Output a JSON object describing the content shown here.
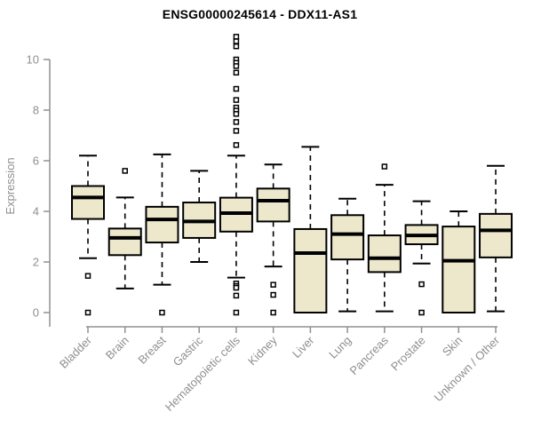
{
  "chart_data": {
    "type": "boxplot",
    "title": "ENSG00000245614 - DDX11-AS1",
    "ylabel": "Expression",
    "xlabel": "",
    "ylim": [
      0,
      11
    ],
    "yticks": [
      0,
      2,
      4,
      6,
      8,
      10
    ],
    "grid": false,
    "legend": false,
    "categories": [
      "Bladder",
      "Brain",
      "Breast",
      "Gastric",
      "Hematopoietic cells",
      "Kidney",
      "Liver",
      "Lung",
      "Pancreas",
      "Prostate",
      "Skin",
      "Unknown / Other"
    ],
    "boxes": [
      {
        "category": "Bladder",
        "min": 2.15,
        "q1": 3.7,
        "median": 4.55,
        "q3": 5.0,
        "max": 6.2,
        "outliers": [
          1.45,
          0
        ]
      },
      {
        "category": "Brain",
        "min": 0.95,
        "q1": 2.27,
        "median": 2.95,
        "q3": 3.32,
        "max": 4.55,
        "outliers": [
          5.6
        ]
      },
      {
        "category": "Breast",
        "min": 1.1,
        "q1": 2.77,
        "median": 3.68,
        "q3": 4.18,
        "max": 6.25,
        "outliers": [
          0
        ]
      },
      {
        "category": "Gastric",
        "min": 2.0,
        "q1": 2.95,
        "median": 3.6,
        "q3": 4.35,
        "max": 5.6,
        "outliers": []
      },
      {
        "category": "Hematopoietic cells",
        "min": 1.38,
        "q1": 3.2,
        "median": 3.93,
        "q3": 4.54,
        "max": 6.2,
        "outliers": [
          10.9,
          10.72,
          10.52,
          10.0,
          9.87,
          9.74,
          9.48,
          8.84,
          8.4,
          8.1,
          7.98,
          7.85,
          7.53,
          7.18,
          6.62,
          1.15,
          1.05,
          0.98,
          0.67,
          0
        ]
      },
      {
        "category": "Kidney",
        "min": 1.82,
        "q1": 3.6,
        "median": 4.42,
        "q3": 4.9,
        "max": 5.85,
        "outliers": [
          1.1,
          0.7,
          0
        ]
      },
      {
        "category": "Liver",
        "min": 0.0,
        "q1": 0.0,
        "median": 2.35,
        "q3": 3.3,
        "max": 6.55,
        "outliers": []
      },
      {
        "category": "Lung",
        "min": 0.05,
        "q1": 2.1,
        "median": 3.1,
        "q3": 3.85,
        "max": 4.5,
        "outliers": []
      },
      {
        "category": "Pancreas",
        "min": 0.05,
        "q1": 1.6,
        "median": 2.15,
        "q3": 3.05,
        "max": 5.05,
        "outliers": [
          5.77
        ]
      },
      {
        "category": "Prostate",
        "min": 1.94,
        "q1": 2.7,
        "median": 3.05,
        "q3": 3.46,
        "max": 4.4,
        "outliers": [
          1.12,
          0
        ]
      },
      {
        "category": "Skin",
        "min": 0.0,
        "q1": 0.0,
        "median": 2.05,
        "q3": 3.4,
        "max": 4.0,
        "outliers": []
      },
      {
        "category": "Unknown / Other",
        "min": 0.05,
        "q1": 2.18,
        "median": 3.25,
        "q3": 3.9,
        "max": 5.8,
        "outliers": []
      }
    ],
    "colors": {
      "box_fill": "#EDE8CC",
      "box_stroke": "#000000",
      "median": "#000000",
      "whisker": "#000000",
      "axis": "#909090",
      "axis_text": "#8f8f8f",
      "title": "#000000",
      "background": "#ffffff"
    }
  }
}
